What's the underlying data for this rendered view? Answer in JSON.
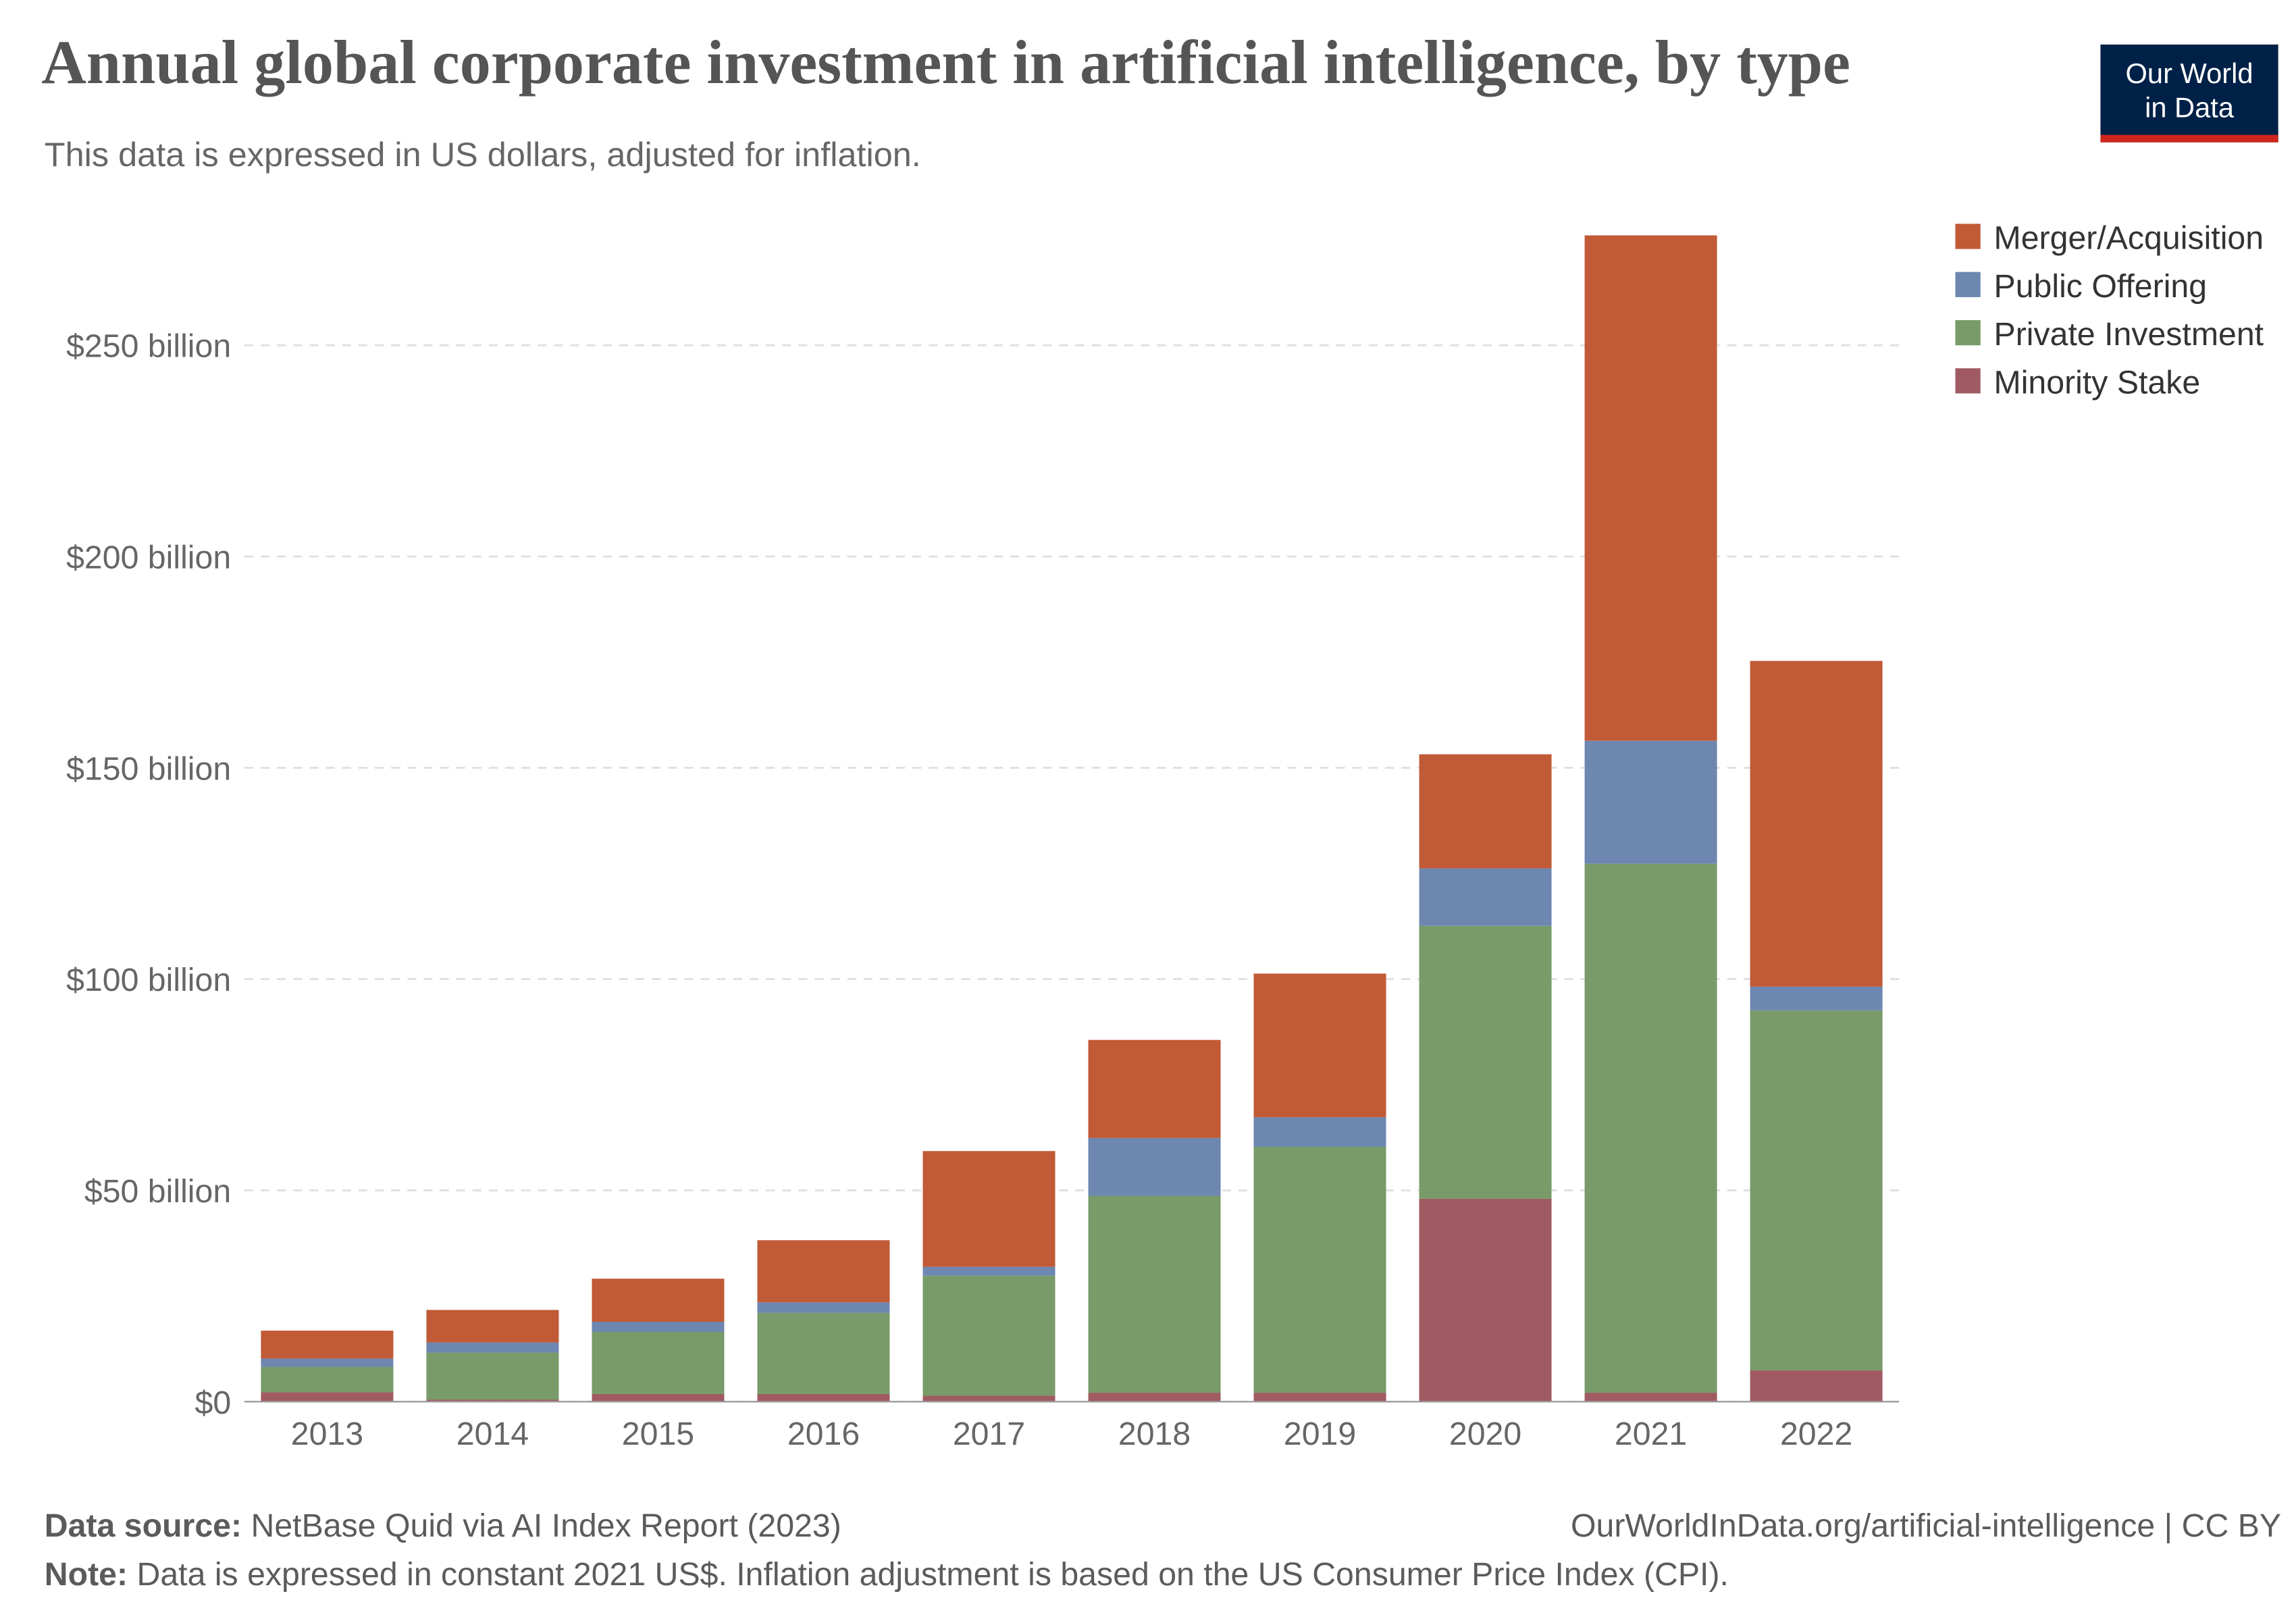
{
  "chart_data": {
    "type": "stacked_bar",
    "title": "Annual global corporate investment in artificial intelligence, by type",
    "subtitle": "This data is expressed in US dollars, adjusted for inflation.",
    "categories": [
      "2013",
      "2014",
      "2015",
      "2016",
      "2017",
      "2018",
      "2019",
      "2020",
      "2021",
      "2022"
    ],
    "series": [
      {
        "name": "Merger/Acquisition",
        "color": "#c15a37",
        "values": [
          6.6,
          7.7,
          10.2,
          14.7,
          27.4,
          23.2,
          34,
          27,
          119.6,
          77.1
        ]
      },
      {
        "name": "Public Offering",
        "color": "#6d87b1",
        "values": [
          2,
          2.4,
          2.4,
          2.5,
          2.1,
          13.7,
          7,
          13.6,
          29.1,
          5.6
        ]
      },
      {
        "name": "Private Investment",
        "color": "#789b69",
        "values": [
          6,
          11.1,
          14.7,
          19.2,
          28.4,
          46.6,
          58.2,
          64.6,
          125.2,
          85.2
        ]
      },
      {
        "name": "Minority Stake",
        "color": "#a05b62",
        "values": [
          2.2,
          0.5,
          1.8,
          1.8,
          1.4,
          2.1,
          2.1,
          48,
          2.1,
          7.4
        ]
      }
    ],
    "ylim": [
      0,
      280
    ],
    "yticks": [
      {
        "value": 0,
        "label": "$0"
      },
      {
        "value": 50,
        "label": "$50 billion"
      },
      {
        "value": 100,
        "label": "$100 billion"
      },
      {
        "value": 150,
        "label": "$150 billion"
      },
      {
        "value": 200,
        "label": "$200 billion"
      },
      {
        "value": 250,
        "label": "$250 billion"
      }
    ],
    "grid": true,
    "legend": "top-right",
    "source_label": "Data source:",
    "source": "NetBase Quid via AI Index Report (2023)",
    "url": "OurWorldInData.org/artificial-intelligence",
    "license": "| CC BY",
    "note_label": "Note:",
    "note": "Data is expressed in constant 2021 US$. Inflation adjustment is based on the US Consumer Price Index (CPI).",
    "logo": [
      "Our World",
      "in Data"
    ]
  }
}
